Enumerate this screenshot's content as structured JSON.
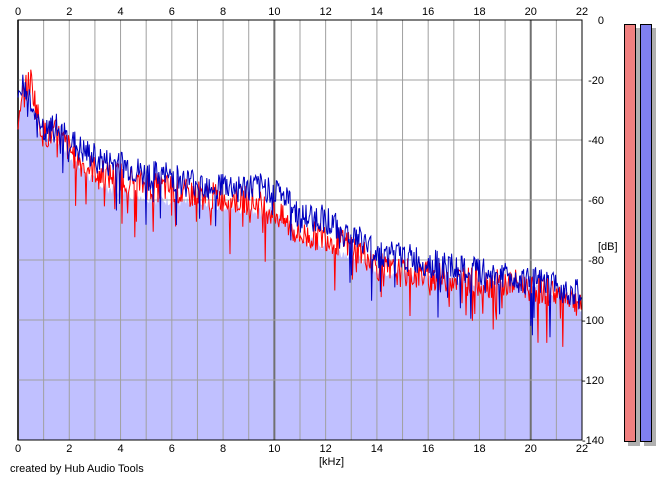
{
  "chart_data": {
    "type": "area",
    "xlabel": "[kHz]",
    "ylabel": "[dB]",
    "xlim": [
      0,
      22
    ],
    "ylim": [
      -140,
      0
    ],
    "x_ticks": [
      0,
      2,
      4,
      6,
      8,
      10,
      12,
      14,
      16,
      18,
      20,
      22
    ],
    "y_ticks": [
      0,
      -20,
      -40,
      -60,
      -80,
      -100,
      -120,
      -140
    ],
    "grid": true,
    "colors": {
      "fill": "#c0c0ff",
      "red": "#ff0000",
      "blue": "#0000c0",
      "grid_minor": "#a0a0a0",
      "grid_major": "#707070"
    },
    "series": [
      {
        "color": "#ff0000",
        "x": [
          0,
          0.2,
          0.5,
          0.8,
          1,
          1.5,
          2,
          2.5,
          3,
          3.5,
          4,
          4.5,
          5,
          5.5,
          6,
          6.5,
          7,
          7.5,
          8,
          8.5,
          9,
          9.5,
          10,
          10.5,
          11,
          11.5,
          12,
          12.5,
          13,
          13.5,
          14,
          14.5,
          15,
          15.5,
          16,
          16.5,
          17,
          17.5,
          18,
          18.5,
          19,
          19.5,
          20,
          20.5,
          21,
          21.5,
          22
        ],
        "y": [
          -38,
          -25,
          -20,
          -33,
          -38,
          -38,
          -43,
          -48,
          -50,
          -52,
          -52,
          -54,
          -55,
          -56,
          -56,
          -58,
          -58,
          -59,
          -59,
          -60,
          -60,
          -62,
          -64,
          -68,
          -72,
          -72,
          -72,
          -74,
          -75,
          -78,
          -82,
          -84,
          -84,
          -85,
          -85,
          -86,
          -86,
          -87,
          -87,
          -88,
          -88,
          -88,
          -89,
          -90,
          -91,
          -92,
          -95
        ]
      },
      {
        "color": "#0000c0",
        "x": [
          0,
          0.2,
          0.5,
          0.8,
          1,
          1.5,
          2,
          2.5,
          3,
          3.5,
          4,
          4.5,
          5,
          5.5,
          6,
          6.5,
          7,
          7.5,
          8,
          8.5,
          9,
          9.5,
          10,
          10.5,
          11,
          11.5,
          12,
          12.5,
          13,
          13.5,
          14,
          14.5,
          15,
          15.5,
          16,
          16.5,
          17,
          17.5,
          18,
          18.5,
          19,
          19.5,
          20,
          20.5,
          21,
          21.5,
          22
        ],
        "y": [
          -30,
          -20,
          -28,
          -36,
          -38,
          -36,
          -40,
          -44,
          -46,
          -48,
          -48,
          -50,
          -52,
          -52,
          -52,
          -54,
          -54,
          -55,
          -55,
          -56,
          -56,
          -56,
          -56,
          -60,
          -66,
          -66,
          -66,
          -70,
          -72,
          -74,
          -78,
          -78,
          -79,
          -80,
          -81,
          -82,
          -83,
          -84,
          -84,
          -85,
          -85,
          -86,
          -87,
          -88,
          -89,
          -90,
          -92
        ]
      }
    ],
    "fill_envelope": {
      "x": [
        0,
        0.2,
        0.5,
        0.8,
        1,
        1.5,
        2,
        2.5,
        3,
        3.5,
        4,
        4.5,
        5,
        5.5,
        6,
        6.5,
        7,
        7.5,
        8,
        8.5,
        9,
        9.5,
        10,
        10.5,
        11,
        11.5,
        12,
        12.5,
        13,
        13.5,
        14,
        14.5,
        15,
        15.5,
        16,
        16.5,
        17,
        17.5,
        18,
        18.5,
        19,
        19.5,
        20,
        20.5,
        21,
        21.5,
        22
      ],
      "y": [
        -32,
        -24,
        -28,
        -36,
        -40,
        -40,
        -45,
        -50,
        -54,
        -56,
        -57,
        -58,
        -59,
        -60,
        -60,
        -61,
        -62,
        -62,
        -62,
        -63,
        -63,
        -64,
        -64,
        -68,
        -74,
        -74,
        -75,
        -77,
        -78,
        -80,
        -83,
        -84,
        -84,
        -85,
        -85,
        -86,
        -86,
        -87,
        -87,
        -88,
        -88,
        -88,
        -89,
        -90,
        -91,
        -92,
        -96
      ]
    },
    "meters": [
      {
        "color": "#f08080"
      },
      {
        "color": "#8080f0"
      }
    ]
  },
  "footer": {
    "credit": "created by Hub Audio Tools"
  }
}
